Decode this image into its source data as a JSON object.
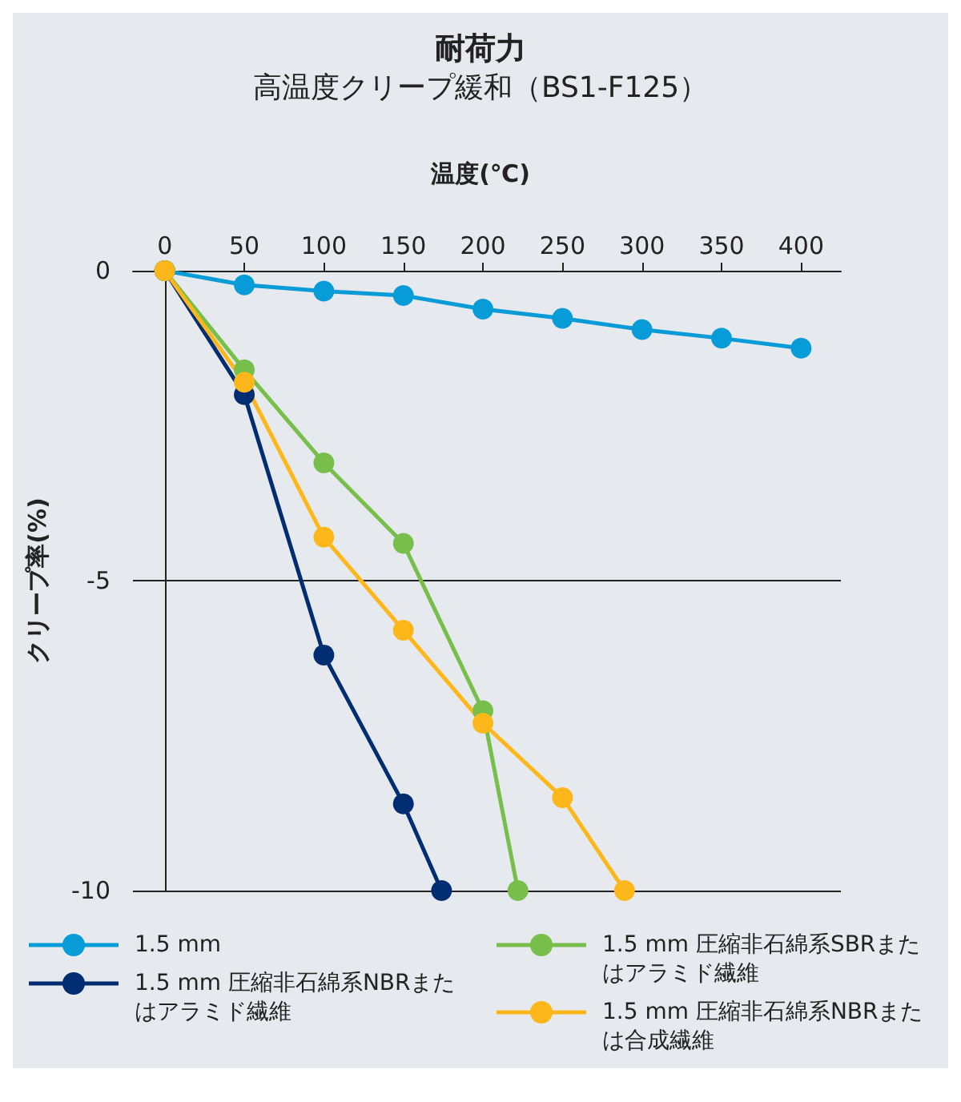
{
  "chart_data": {
    "type": "line",
    "title": "耐荷力",
    "subtitle": "高温度クリープ緩和（BS1-F125）",
    "xlabel": "温度(℃)",
    "ylabel": "クリープ率(%)",
    "xlim": [
      -20,
      425
    ],
    "xticks": [
      0,
      50,
      100,
      150,
      200,
      250,
      300,
      350,
      400
    ],
    "ylim": [
      -10,
      0
    ],
    "yticks": [
      -10,
      -5,
      0
    ],
    "grid": "y",
    "legend": "bottom",
    "marker": "circle",
    "line_style": "solid",
    "series": [
      {
        "name": "1.5 mm",
        "color": "#079bd8",
        "x": [
          0,
          50,
          100,
          150,
          200,
          250,
          300,
          350,
          400
        ],
        "values": [
          0,
          -0.23,
          -0.33,
          -0.4,
          -0.62,
          -0.77,
          -0.95,
          -1.09,
          -1.25
        ]
      },
      {
        "name": "1.5 mm 圧縮非石綿系NBRまたはアラミド繊維",
        "color": "#002d72",
        "x": [
          0,
          50,
          100,
          150,
          174
        ],
        "values": [
          0,
          -2.0,
          -6.2,
          -8.6,
          -10
        ]
      },
      {
        "name": "1.5 mm 圧縮非石綿系SBRまたはアラミド繊維",
        "color": "#78be4b",
        "x": [
          0,
          50,
          100,
          150,
          200,
          222
        ],
        "values": [
          0,
          -1.6,
          -3.1,
          -4.4,
          -7.1,
          -10
        ]
      },
      {
        "name": "1.5 mm 圧縮非石綿系NBRまたは合成繊維",
        "color": "#fdb71a",
        "x": [
          0,
          50,
          100,
          150,
          200,
          250,
          289
        ],
        "values": [
          0,
          -1.8,
          -4.3,
          -5.8,
          -7.3,
          -8.5,
          -10
        ]
      }
    ]
  }
}
